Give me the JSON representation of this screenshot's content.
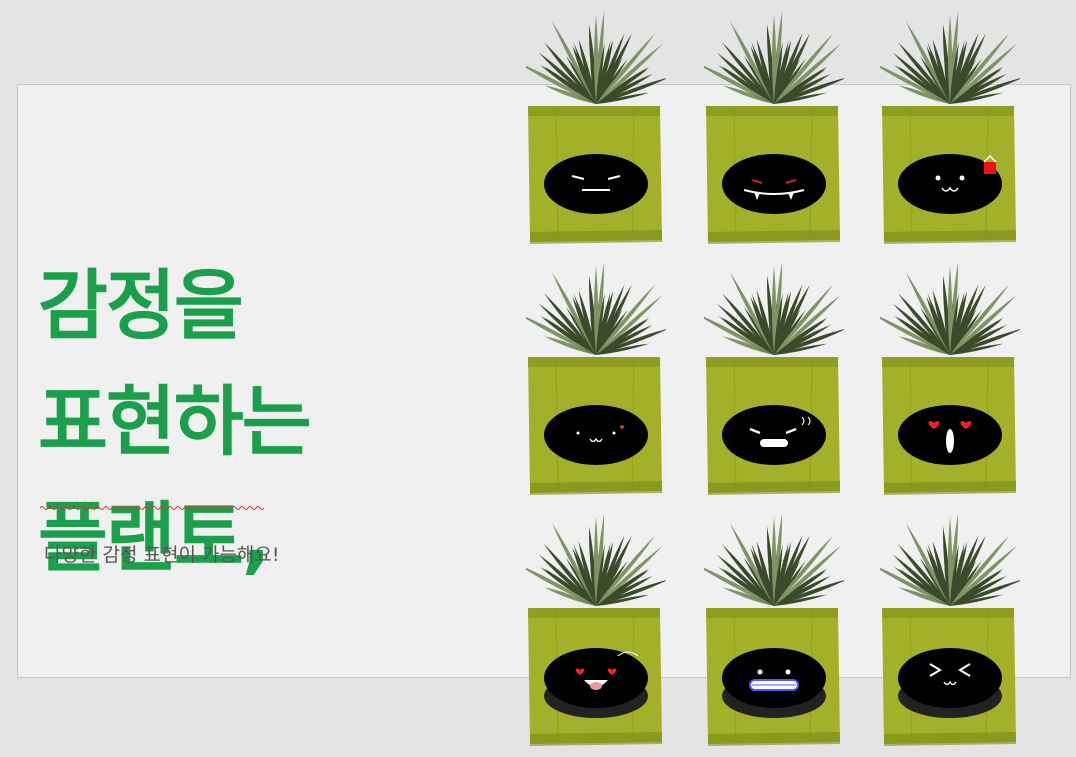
{
  "slide": {
    "headline_lines": [
      "감정을",
      "표현하는",
      "플랜토,"
    ],
    "subtitle": "다양한 감정 표현이 가능해요!"
  },
  "colors": {
    "headline": "#1aa04a",
    "pot": "#a3b02a",
    "pot_shadow": "#7c8a18",
    "face": "#000000",
    "leaf_dark": "#3b4a2a",
    "leaf_light": "#7e9464"
  },
  "planters": [
    {
      "face": "annoyed"
    },
    {
      "face": "fanged"
    },
    {
      "face": "embarrassed"
    },
    {
      "face": "shy"
    },
    {
      "face": "angry"
    },
    {
      "face": "love-surprised"
    },
    {
      "face": "flirty"
    },
    {
      "face": "grinning"
    },
    {
      "face": "squinting"
    }
  ]
}
